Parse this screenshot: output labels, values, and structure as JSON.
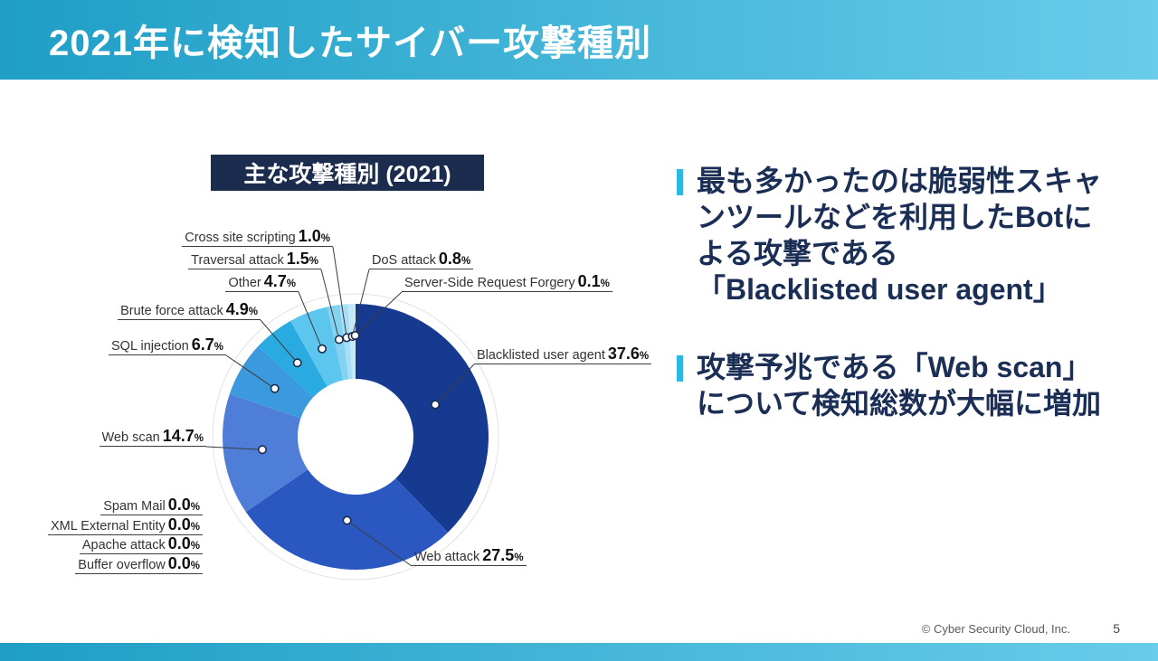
{
  "slide": {
    "header_title": "2021年に検知したサイバー攻撃種別",
    "footer_copyright": "© Cyber Security Cloud, Inc.",
    "page_number": "5"
  },
  "chart_title": "主な攻撃種別 (2021)",
  "bullets": [
    {
      "text": "最も多かったのは脆弱性スキャ\nンツールなどを利用したBotに\nよる攻撃である\n「Blacklisted user agent」"
    },
    {
      "text": "攻撃予兆である「Web scan」\nについて検知総数が大幅に増加"
    }
  ],
  "colors": {
    "header_gradient_left": "#1f9ec6",
    "header_gradient_right": "#68ccea",
    "accent_bar": "#2ab9e6",
    "title_box_bg": "#1b2c4e",
    "heading_text": "#1b2e55"
  },
  "chart_data": {
    "type": "pie",
    "subtype": "donut",
    "title": "主な攻撃種別 (2021)",
    "unit": "%",
    "slices": [
      {
        "name": "Blacklisted user agent",
        "value": 37.6,
        "display": "37.6",
        "color": "#163a90"
      },
      {
        "name": "Web attack",
        "value": 27.5,
        "display": "27.5",
        "color": "#2b57c0"
      },
      {
        "name": "Web scan",
        "value": 14.7,
        "display": "14.7",
        "color": "#4f7ed9"
      },
      {
        "name": "SQL injection",
        "value": 6.7,
        "display": "6.7",
        "color": "#3b9ade"
      },
      {
        "name": "Brute force attack",
        "value": 4.9,
        "display": "4.9",
        "color": "#29abe2"
      },
      {
        "name": "Other",
        "value": 4.7,
        "display": "4.7",
        "color": "#5cc6ee"
      },
      {
        "name": "Traversal attack",
        "value": 1.5,
        "display": "1.5",
        "color": "#84d2f1"
      },
      {
        "name": "Cross site scripting",
        "value": 1.0,
        "display": "1.0",
        "color": "#a5def5"
      },
      {
        "name": "DoS attack",
        "value": 0.8,
        "display": "0.8",
        "color": "#c3e9f8"
      },
      {
        "name": "Server-Side Request Forgery",
        "value": 0.1,
        "display": "0.1",
        "color": "#ddf2fb"
      },
      {
        "name": "Spam Mail",
        "value": 0.0,
        "display": "0.0",
        "color": null
      },
      {
        "name": "XML External Entity",
        "value": 0.0,
        "display": "0.0",
        "color": null
      },
      {
        "name": "Apache attack",
        "value": 0.0,
        "display": "0.0",
        "color": null
      },
      {
        "name": "Buffer overflow",
        "value": 0.0,
        "display": "0.0",
        "color": null
      }
    ]
  }
}
